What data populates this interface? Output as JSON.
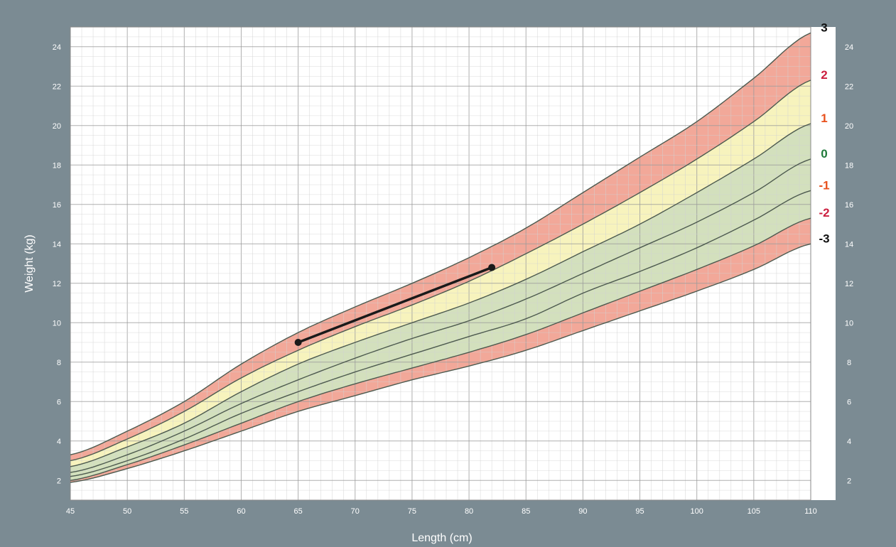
{
  "chart_data": {
    "type": "line",
    "title": "",
    "xlabel": "Length (cm)",
    "ylabel": "Weight (kg)",
    "xlim": [
      45,
      110
    ],
    "ylim": [
      1,
      25
    ],
    "x_ticks": [
      45,
      50,
      55,
      60,
      65,
      70,
      75,
      80,
      85,
      90,
      95,
      100,
      105,
      110
    ],
    "y_ticks": [
      2,
      4,
      6,
      8,
      10,
      12,
      14,
      16,
      18,
      20,
      22,
      24
    ],
    "grid": true,
    "x": [
      45,
      50,
      55,
      60,
      65,
      70,
      75,
      80,
      85,
      90,
      95,
      100,
      105,
      110
    ],
    "curves": [
      {
        "label": "3",
        "color": "#111111",
        "values": [
          3.3,
          4.5,
          6.0,
          7.9,
          9.5,
          10.8,
          12.0,
          13.3,
          14.8,
          16.6,
          18.4,
          20.2,
          22.4,
          24.7
        ]
      },
      {
        "label": "2",
        "color": "#cc1f3f",
        "values": [
          3.0,
          4.1,
          5.5,
          7.2,
          8.6,
          9.8,
          10.9,
          12.1,
          13.5,
          15.0,
          16.6,
          18.3,
          20.2,
          22.3
        ]
      },
      {
        "label": "1",
        "color": "#e8501c",
        "values": [
          2.7,
          3.7,
          4.9,
          6.5,
          7.9,
          9.0,
          10.0,
          11.0,
          12.2,
          13.6,
          15.0,
          16.6,
          18.3,
          20.1
        ]
      },
      {
        "label": "0",
        "color": "#1f7a3a",
        "values": [
          2.4,
          3.3,
          4.5,
          5.9,
          7.1,
          8.2,
          9.2,
          10.1,
          11.2,
          12.5,
          13.8,
          15.1,
          16.6,
          18.3
        ]
      },
      {
        "label": "-1",
        "color": "#e8501c",
        "values": [
          2.2,
          3.0,
          4.1,
          5.4,
          6.5,
          7.5,
          8.4,
          9.3,
          10.2,
          11.5,
          12.6,
          13.8,
          15.2,
          16.7
        ]
      },
      {
        "label": "-2",
        "color": "#cc1f3f",
        "values": [
          2.0,
          2.8,
          3.8,
          4.9,
          6.0,
          6.9,
          7.7,
          8.5,
          9.4,
          10.5,
          11.6,
          12.7,
          13.9,
          15.3
        ]
      },
      {
        "label": "-3",
        "color": "#111111",
        "values": [
          1.9,
          2.6,
          3.5,
          4.5,
          5.5,
          6.3,
          7.1,
          7.8,
          8.6,
          9.6,
          10.6,
          11.6,
          12.7,
          14.0
        ]
      }
    ],
    "measurements": {
      "x": [
        65,
        82
      ],
      "y": [
        9.0,
        12.8
      ],
      "color": "#1a1a1a"
    },
    "zones": [
      {
        "between": [
          "3",
          "2"
        ],
        "color": "#f2a899"
      },
      {
        "between": [
          "2",
          "1"
        ],
        "color": "#f7f3bd"
      },
      {
        "between": [
          "1",
          "-2"
        ],
        "color": "#d3e0bd"
      },
      {
        "between": [
          "-2",
          "-3"
        ],
        "color": "#f2a899"
      }
    ]
  }
}
